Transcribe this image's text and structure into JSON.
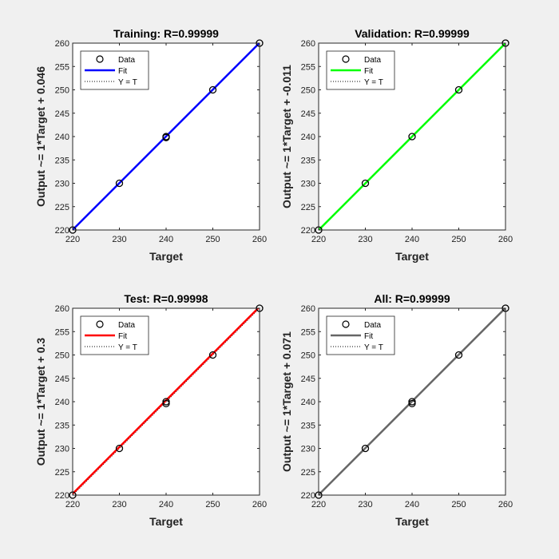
{
  "figure": {
    "background": "#f0f0f0"
  },
  "chart_data": [
    {
      "type": "scatter",
      "title": "Training: R=0.99999",
      "xlabel": "Target",
      "ylabel": "Output ~= 1*Target + 0.046",
      "xlim": [
        220,
        260
      ],
      "ylim": [
        220,
        260
      ],
      "xticks": [
        220,
        230,
        240,
        250,
        260
      ],
      "yticks": [
        220,
        225,
        230,
        235,
        240,
        245,
        250,
        255,
        260
      ],
      "grid": false,
      "legend": {
        "placement": "top-left",
        "entries": [
          "Data",
          "Fit",
          "Y = T"
        ]
      },
      "fit_color": "#0000ff",
      "fit": {
        "slope": 1,
        "intercept": 0.046
      },
      "points": [
        {
          "x": 220,
          "y": 220
        },
        {
          "x": 230,
          "y": 230
        },
        {
          "x": 240,
          "y": 240
        },
        {
          "x": 240,
          "y": 239.8
        },
        {
          "x": 250,
          "y": 250
        },
        {
          "x": 260,
          "y": 260
        }
      ]
    },
    {
      "type": "scatter",
      "title": "Validation: R=0.99999",
      "xlabel": "Target",
      "ylabel": "Output ~= 1*Target + -0.011",
      "xlim": [
        220,
        260
      ],
      "ylim": [
        220,
        260
      ],
      "xticks": [
        220,
        230,
        240,
        250,
        260
      ],
      "yticks": [
        220,
        225,
        230,
        235,
        240,
        245,
        250,
        255,
        260
      ],
      "grid": false,
      "legend": {
        "placement": "top-left",
        "entries": [
          "Data",
          "Fit",
          "Y = T"
        ]
      },
      "fit_color": "#00ff00",
      "fit": {
        "slope": 1,
        "intercept": -0.011
      },
      "points": [
        {
          "x": 220,
          "y": 220
        },
        {
          "x": 230,
          "y": 230
        },
        {
          "x": 240,
          "y": 240
        },
        {
          "x": 250,
          "y": 250
        },
        {
          "x": 260,
          "y": 260
        }
      ]
    },
    {
      "type": "scatter",
      "title": "Test: R=0.99998",
      "xlabel": "Target",
      "ylabel": "Output ~= 1*Target + 0.3",
      "xlim": [
        220,
        260
      ],
      "ylim": [
        220,
        260
      ],
      "xticks": [
        220,
        230,
        240,
        250,
        260
      ],
      "yticks": [
        220,
        225,
        230,
        235,
        240,
        245,
        250,
        255,
        260
      ],
      "grid": false,
      "legend": {
        "placement": "top-left",
        "entries": [
          "Data",
          "Fit",
          "Y = T"
        ]
      },
      "fit_color": "#ff0000",
      "fit": {
        "slope": 1,
        "intercept": 0.3
      },
      "points": [
        {
          "x": 220,
          "y": 220
        },
        {
          "x": 230,
          "y": 230
        },
        {
          "x": 240,
          "y": 240
        },
        {
          "x": 240,
          "y": 239.6
        },
        {
          "x": 250,
          "y": 250
        },
        {
          "x": 260,
          "y": 260
        }
      ]
    },
    {
      "type": "scatter",
      "title": "All: R=0.99999",
      "xlabel": "Target",
      "ylabel": "Output ~= 1*Target + 0.071",
      "xlim": [
        220,
        260
      ],
      "ylim": [
        220,
        260
      ],
      "xticks": [
        220,
        230,
        240,
        250,
        260
      ],
      "yticks": [
        220,
        225,
        230,
        235,
        240,
        245,
        250,
        255,
        260
      ],
      "grid": false,
      "legend": {
        "placement": "top-left",
        "entries": [
          "Data",
          "Fit",
          "Y = T"
        ]
      },
      "fit_color": "#666666",
      "fit": {
        "slope": 1,
        "intercept": 0.071
      },
      "points": [
        {
          "x": 220,
          "y": 220
        },
        {
          "x": 230,
          "y": 230
        },
        {
          "x": 240,
          "y": 240
        },
        {
          "x": 240,
          "y": 239.6
        },
        {
          "x": 250,
          "y": 250
        },
        {
          "x": 260,
          "y": 260
        }
      ]
    }
  ]
}
